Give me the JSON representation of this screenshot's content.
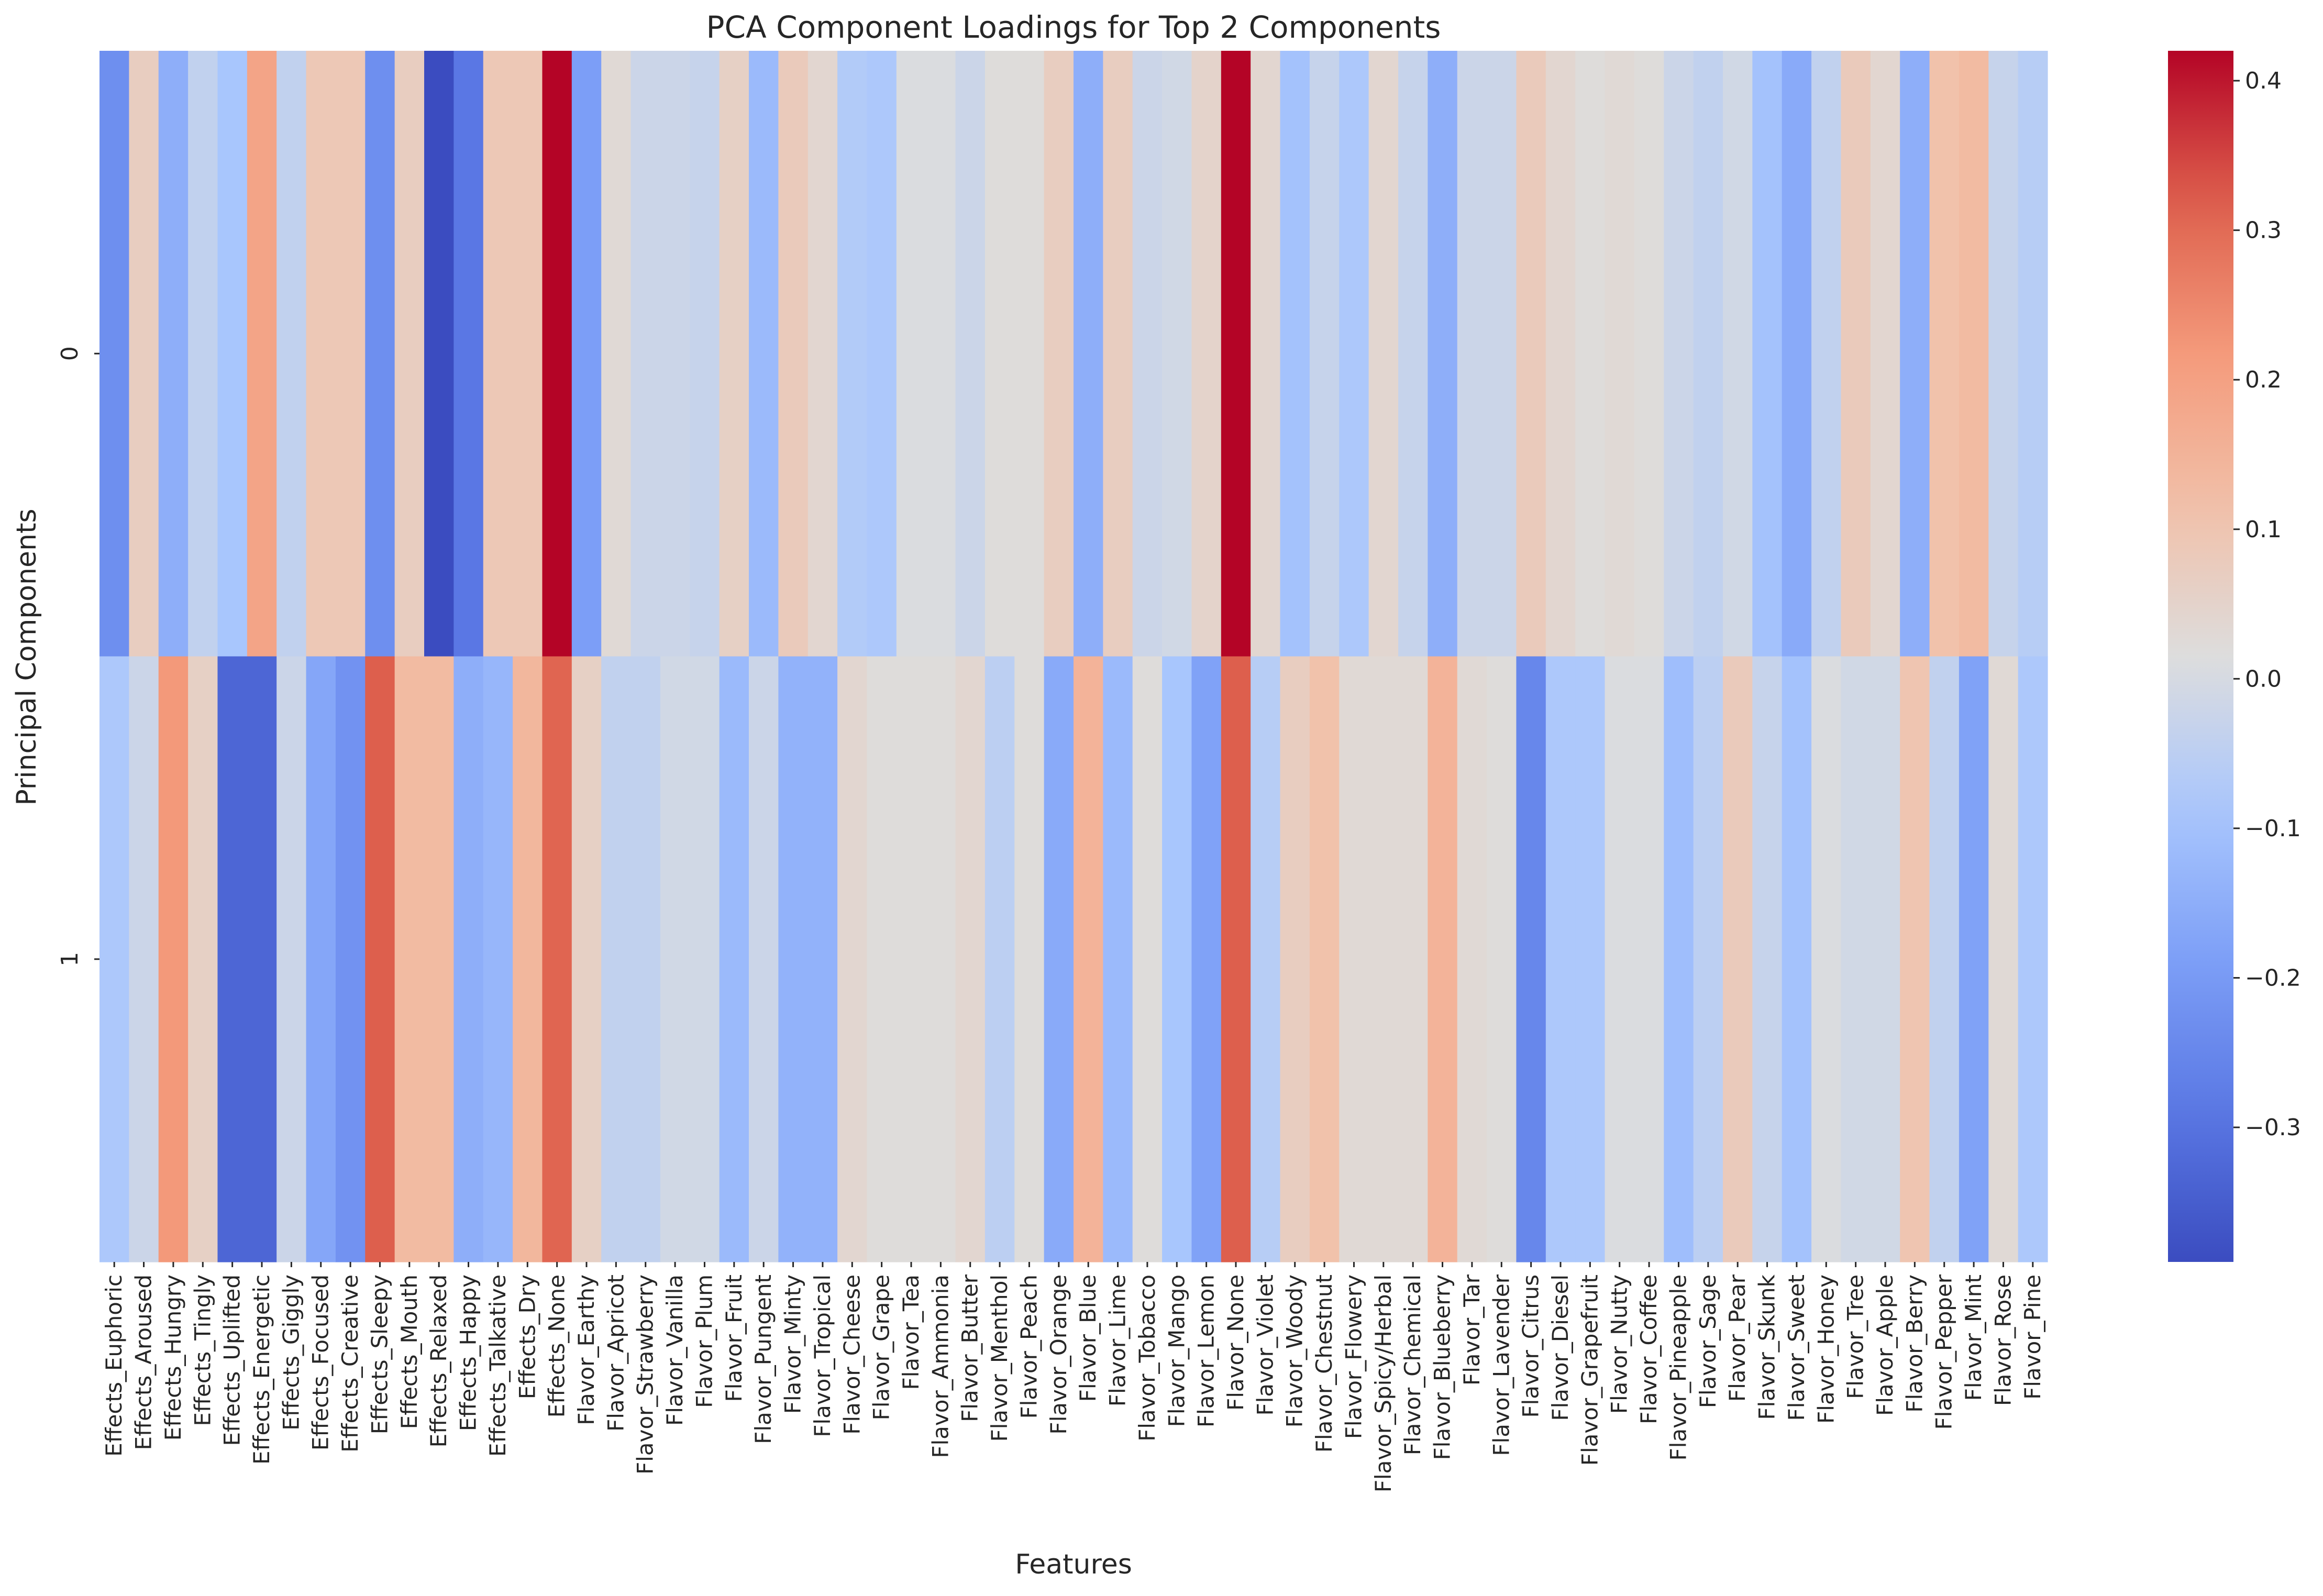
{
  "chart_data": {
    "type": "heatmap",
    "title": "PCA Component Loadings for Top 2 Components",
    "xlabel": "Features",
    "ylabel": "Principal Components",
    "rows": [
      "0",
      "1"
    ],
    "columns": [
      "Effects_Euphoric",
      "Effects_Aroused",
      "Effects_Hungry",
      "Effects_Tingly",
      "Effects_Uplifted",
      "Effects_Energetic",
      "Effects_Giggly",
      "Effects_Focused",
      "Effects_Creative",
      "Effects_Sleepy",
      "Effects_Mouth",
      "Effects_Relaxed",
      "Effects_Happy",
      "Effects_Talkative",
      "Effects_Dry",
      "Effects_None",
      "Flavor_Earthy",
      "Flavor_Apricot",
      "Flavor_Strawberry",
      "Flavor_Vanilla",
      "Flavor_Plum",
      "Flavor_Fruit",
      "Flavor_Pungent",
      "Flavor_Minty",
      "Flavor_Tropical",
      "Flavor_Cheese",
      "Flavor_Grape",
      "Flavor_Tea",
      "Flavor_Ammonia",
      "Flavor_Butter",
      "Flavor_Menthol",
      "Flavor_Peach",
      "Flavor_Orange",
      "Flavor_Blue",
      "Flavor_Lime",
      "Flavor_Tobacco",
      "Flavor_Mango",
      "Flavor_Lemon",
      "Flavor_None",
      "Flavor_Violet",
      "Flavor_Woody",
      "Flavor_Chestnut",
      "Flavor_Flowery",
      "Flavor_Spicy/Herbal",
      "Flavor_Chemical",
      "Flavor_Blueberry",
      "Flavor_Tar",
      "Flavor_Lavender",
      "Flavor_Citrus",
      "Flavor_Diesel",
      "Flavor_Grapefruit",
      "Flavor_Nutty",
      "Flavor_Coffee",
      "Flavor_Pineapple",
      "Flavor_Sage",
      "Flavor_Pear",
      "Flavor_Skunk",
      "Flavor_Sweet",
      "Flavor_Honey",
      "Flavor_Tree",
      "Flavor_Apple",
      "Flavor_Berry",
      "Flavor_Pepper",
      "Flavor_Mint",
      "Flavor_Rose",
      "Flavor_Pine"
    ],
    "values": [
      [
        -0.23,
        0.07,
        -0.15,
        -0.04,
        -0.09,
        0.19,
        -0.04,
        0.09,
        0.09,
        -0.23,
        0.07,
        -0.39,
        -0.29,
        0.09,
        0.09,
        0.42,
        -0.19,
        0.03,
        -0.02,
        -0.02,
        -0.03,
        0.06,
        -0.12,
        0.08,
        0.04,
        -0.07,
        -0.08,
        0.01,
        0.01,
        -0.02,
        0.02,
        0.02,
        0.07,
        -0.15,
        0.07,
        -0.02,
        -0.01,
        0.05,
        0.42,
        0.04,
        -0.1,
        -0.03,
        -0.08,
        0.04,
        -0.03,
        -0.15,
        -0.02,
        -0.02,
        0.08,
        0.04,
        0.02,
        0.03,
        0.02,
        -0.02,
        -0.04,
        -0.01,
        -0.1,
        -0.16,
        -0.04,
        0.08,
        0.04,
        -0.15,
        0.11,
        0.13,
        -0.03,
        -0.06
      ],
      [
        -0.08,
        -0.02,
        0.22,
        0.06,
        -0.33,
        -0.33,
        -0.02,
        -0.17,
        -0.22,
        0.32,
        0.13,
        0.13,
        -0.15,
        -0.13,
        0.14,
        0.31,
        0.06,
        -0.04,
        -0.04,
        -0.01,
        -0.01,
        -0.12,
        -0.02,
        -0.14,
        -0.14,
        0.04,
        0.02,
        0.02,
        0.02,
        0.04,
        -0.05,
        0.02,
        -0.16,
        0.15,
        -0.12,
        0.02,
        -0.09,
        -0.18,
        0.32,
        -0.06,
        0.07,
        0.11,
        0.03,
        0.03,
        0.03,
        0.15,
        0.03,
        0.02,
        -0.25,
        -0.08,
        -0.08,
        0.01,
        0.01,
        -0.11,
        -0.05,
        0.08,
        -0.03,
        -0.1,
        0.01,
        -0.01,
        -0.01,
        0.1,
        -0.04,
        -0.18,
        0.03,
        -0.08
      ]
    ],
    "colorbar": {
      "colormap": "coolwarm",
      "vmin": -0.39,
      "vmax": 0.42,
      "ticks": [
        -0.3,
        -0.2,
        -0.1,
        0.0,
        0.1,
        0.2,
        0.3,
        0.4
      ],
      "tick_labels": [
        "−0.3",
        "−0.2",
        "−0.1",
        "0.0",
        "0.1",
        "0.2",
        "0.3",
        "0.4"
      ]
    }
  }
}
